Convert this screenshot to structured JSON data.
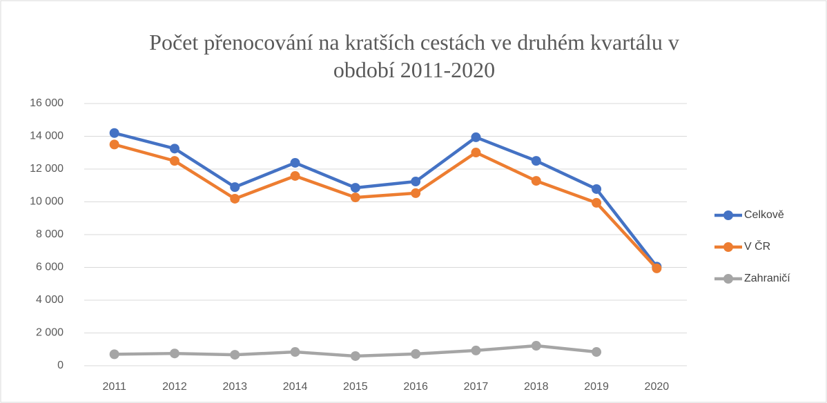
{
  "chart_data": {
    "type": "line",
    "title": [
      "Počet přenocování na kratších cestách ve druhém kvartálu v",
      "období 2011-2020"
    ],
    "categories": [
      "2011",
      "2012",
      "2013",
      "2014",
      "2015",
      "2016",
      "2017",
      "2018",
      "2019",
      "2020"
    ],
    "series": [
      {
        "name": "Celkově",
        "color": "#4472c4",
        "values": [
          14200,
          13250,
          10900,
          12380,
          10860,
          11240,
          13940,
          12500,
          10780,
          6050
        ]
      },
      {
        "name": "V ČR",
        "color": "#ed7d31",
        "values": [
          13500,
          12500,
          10190,
          11580,
          10270,
          10530,
          13010,
          11280,
          9940,
          5940
        ]
      },
      {
        "name": "Zahraničí",
        "color": "#a5a5a5",
        "values": [
          700,
          750,
          670,
          840,
          590,
          720,
          930,
          1220,
          840,
          null
        ]
      }
    ],
    "ylim": [
      0,
      16000
    ],
    "yticks": [
      0,
      {
        "value": 2000,
        "label": "2 000"
      },
      {
        "value": 4000,
        "label": "4 000"
      },
      {
        "value": 6000,
        "label": "6 000"
      },
      {
        "value": 8000,
        "label": "8 000"
      },
      {
        "value": 10000,
        "label": "10 000"
      },
      {
        "value": 12000,
        "label": "12 000"
      },
      {
        "value": 14000,
        "label": "14 000"
      },
      {
        "value": 16000,
        "label": "16 000"
      }
    ],
    "grid": true,
    "legend": "right"
  }
}
